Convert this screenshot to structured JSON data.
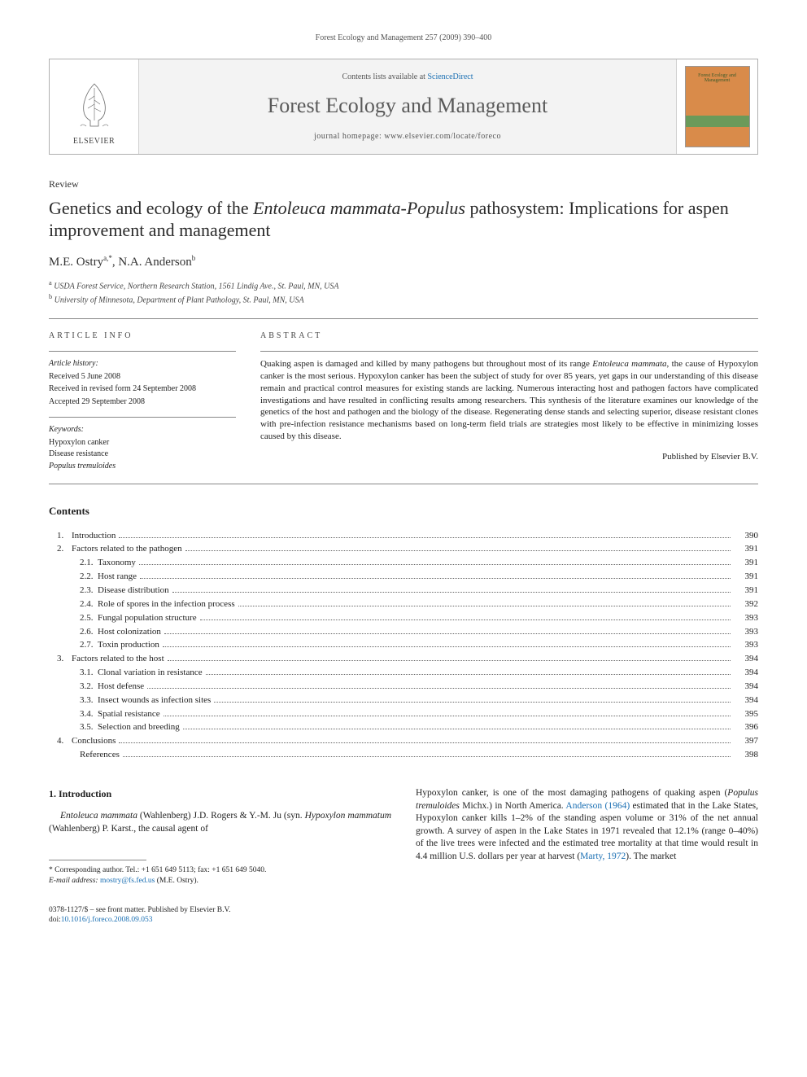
{
  "header": {
    "running_head": "Forest Ecology and Management 257 (2009) 390–400"
  },
  "masthead": {
    "publisher_label": "ELSEVIER",
    "contents_prefix": "Contents lists available at ",
    "contents_link": "ScienceDirect",
    "journal_name": "Forest Ecology and Management",
    "homepage_label": "journal homepage: www.elsevier.com/locate/foreco",
    "cover_title": "Forest Ecology and Management"
  },
  "article": {
    "type": "Review",
    "title_pre": "Genetics and ecology of the ",
    "title_species": "Entoleuca mammata-Populus",
    "title_post": " pathosystem: Implications for aspen improvement and management",
    "authors_html": "M.E. Ostry",
    "author1_sup": "a,*",
    "author2": ", N.A. Anderson",
    "author2_sup": "b",
    "affiliations": [
      {
        "sup": "a",
        "text": "USDA Forest Service, Northern Research Station, 1561 Lindig Ave., St. Paul, MN, USA"
      },
      {
        "sup": "b",
        "text": "University of Minnesota, Department of Plant Pathology, St. Paul, MN, USA"
      }
    ]
  },
  "info": {
    "heading": "ARTICLE INFO",
    "history_label": "Article history:",
    "history": [
      "Received 5 June 2008",
      "Received in revised form 24 September 2008",
      "Accepted 29 September 2008"
    ],
    "keywords_label": "Keywords:",
    "keywords": [
      {
        "text": "Hypoxylon canker",
        "italic": false
      },
      {
        "text": "Disease resistance",
        "italic": false
      },
      {
        "text": "Populus tremuloides",
        "italic": true
      }
    ]
  },
  "abstract": {
    "heading": "ABSTRACT",
    "text_pre": "Quaking aspen is damaged and killed by many pathogens but throughout most of its range ",
    "text_species": "Entoleuca mammata",
    "text_post": ", the cause of Hypoxylon canker is the most serious. Hypoxylon canker has been the subject of study for over 85 years, yet gaps in our understanding of this disease remain and practical control measures for existing stands are lacking. Numerous interacting host and pathogen factors have complicated investigations and have resulted in conflicting results among researchers. This synthesis of the literature examines our knowledge of the genetics of the host and pathogen and the biology of the disease. Regenerating dense stands and selecting superior, disease resistant clones with pre-infection resistance mechanisms based on long-term field trials are strategies most likely to be effective in minimizing losses caused by this disease.",
    "published_by": "Published by Elsevier B.V."
  },
  "contents": {
    "heading": "Contents",
    "items": [
      {
        "level": 1,
        "num": "1.",
        "title": "Introduction",
        "page": "390"
      },
      {
        "level": 1,
        "num": "2.",
        "title": "Factors related to the pathogen",
        "page": "391"
      },
      {
        "level": 2,
        "num": "2.1.",
        "title": "Taxonomy",
        "page": "391"
      },
      {
        "level": 2,
        "num": "2.2.",
        "title": "Host range",
        "page": "391"
      },
      {
        "level": 2,
        "num": "2.3.",
        "title": "Disease distribution",
        "page": "391"
      },
      {
        "level": 2,
        "num": "2.4.",
        "title": "Role of spores in the infection process",
        "page": "392"
      },
      {
        "level": 2,
        "num": "2.5.",
        "title": "Fungal population structure",
        "page": "393"
      },
      {
        "level": 2,
        "num": "2.6.",
        "title": "Host colonization",
        "page": "393"
      },
      {
        "level": 2,
        "num": "2.7.",
        "title": "Toxin production",
        "page": "393"
      },
      {
        "level": 1,
        "num": "3.",
        "title": "Factors related to the host",
        "page": "394"
      },
      {
        "level": 2,
        "num": "3.1.",
        "title": "Clonal variation in resistance",
        "page": "394"
      },
      {
        "level": 2,
        "num": "3.2.",
        "title": "Host defense",
        "page": "394"
      },
      {
        "level": 2,
        "num": "3.3.",
        "title": "Insect wounds as infection sites",
        "page": "394"
      },
      {
        "level": 2,
        "num": "3.4.",
        "title": "Spatial resistance",
        "page": "395"
      },
      {
        "level": 2,
        "num": "3.5.",
        "title": "Selection and breeding",
        "page": "396"
      },
      {
        "level": 1,
        "num": "4.",
        "title": "Conclusions",
        "page": "397"
      },
      {
        "level": 0,
        "num": "",
        "title": "References",
        "page": "398"
      }
    ]
  },
  "body": {
    "section1_heading": "1. Introduction",
    "col1_p1_s1": "Entoleuca mammata",
    "col1_p1_t1": " (Wahlenberg) J.D. Rogers & Y.-M. Ju (syn. ",
    "col1_p1_s2": "Hypoxylon mammatum",
    "col1_p1_t2": " (Wahlenberg) P. Karst., the causal agent of",
    "col2_p1_t1": "Hypoxylon canker, is one of the most damaging pathogens of quaking aspen (",
    "col2_p1_s1": "Populus tremuloides",
    "col2_p1_t2": " Michx.) in North America. ",
    "col2_p1_c1": "Anderson (1964)",
    "col2_p1_t3": " estimated that in the Lake States, Hypoxylon canker kills 1–2% of the standing aspen volume or 31% of the net annual growth. A survey of aspen in the Lake States in 1971 revealed that 12.1% (range 0–40%) of the live trees were infected and the estimated tree mortality at that time would result in 4.4 million U.S. dollars per year at harvest (",
    "col2_p1_c2": "Marty, 1972",
    "col2_p1_t4": "). The market"
  },
  "footnote": {
    "corr_label": "* Corresponding author. Tel.: +1 651 649 5113; fax: +1 651 649 5040.",
    "email_label": "E-mail address:",
    "email": "mostry@fs.fed.us",
    "email_who": " (M.E. Ostry)."
  },
  "copyright": {
    "line1": "0378-1127/$ – see front matter. Published by Elsevier B.V.",
    "doi_label": "doi:",
    "doi": "10.1016/j.foreco.2008.09.053"
  },
  "colors": {
    "link": "#1a6fb3",
    "text": "#222222",
    "rule": "#888888",
    "cover_bg": "#d98b4a",
    "cover_band": "#6a9a5a"
  }
}
